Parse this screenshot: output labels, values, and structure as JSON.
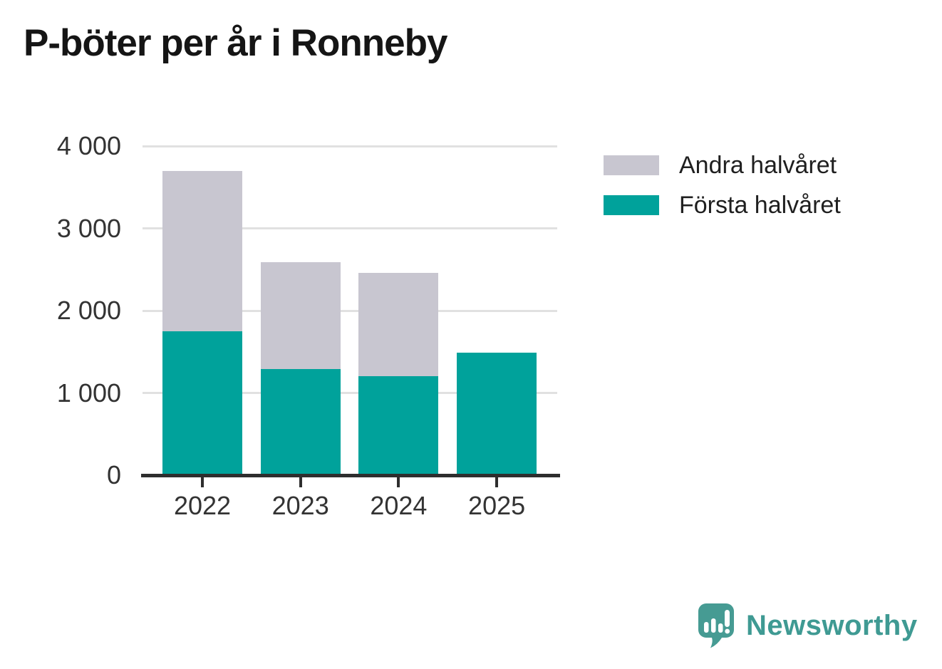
{
  "chart": {
    "title": "P-böter per år i Ronneby"
  },
  "branding": {
    "name": "Newsworthy",
    "color": "#3f9a93",
    "icon": "newsworthy-speech-bubble-bar-chart-icon"
  },
  "chart_data": {
    "type": "bar",
    "stacked": true,
    "title": "P-böter per år i Ronneby",
    "categories": [
      "2022",
      "2023",
      "2024",
      "2025"
    ],
    "series": [
      {
        "name": "Första halvåret",
        "color": "#00a29b",
        "values": [
          1750,
          1290,
          1200,
          1490
        ]
      },
      {
        "name": "Andra halvåret",
        "color": "#c8c6d0",
        "values": [
          1950,
          1300,
          1260,
          0
        ]
      }
    ],
    "totals": [
      3700,
      2590,
      2460,
      1490
    ],
    "xlabel": "",
    "ylabel": "",
    "ylim": [
      0,
      4000
    ],
    "ytick_values": [
      0,
      1000,
      2000,
      3000,
      4000
    ],
    "ytick_labels": [
      "0",
      "1 000",
      "2 000",
      "3 000",
      "4 000"
    ],
    "grid": true,
    "gridline_color": "#e1e1e1",
    "axis_color": "#2e2e2e",
    "legend_position": "right",
    "legend_order": [
      "Andra halvåret",
      "Första halvåret"
    ]
  }
}
